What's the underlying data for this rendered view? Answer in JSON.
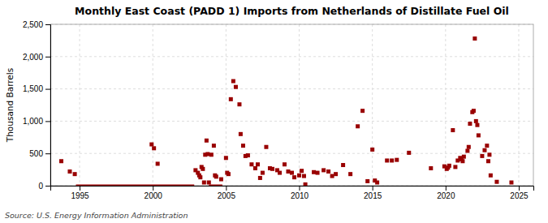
{
  "chart_data": {
    "type": "scatter",
    "title": "Monthly East Coast (PADD 1) Imports from Netherlands of Distillate Fuel Oil",
    "ylabel": "Thousand Barrels",
    "annotation": "Source: U.S. Energy Information Administration",
    "color": "#990000",
    "marker": "square",
    "grid": true,
    "xlim": [
      1993.0,
      2026.0
    ],
    "ylim": [
      0,
      2500
    ],
    "xticks": [
      1995,
      2000,
      2005,
      2010,
      2015,
      2020,
      2025
    ],
    "yticks": [
      0,
      500,
      {
        "value": 1000,
        "label": "1,000"
      },
      {
        "value": 1500,
        "label": "1,500"
      },
      {
        "value": 2000,
        "label": "2,000"
      },
      {
        "value": 2500,
        "label": "2,500"
      }
    ],
    "x": [
      1993.75,
      1994.33,
      1994.67,
      1999.92,
      2000.08,
      2000.33,
      2002.92,
      2003.08,
      2003.17,
      2003.25,
      2003.33,
      2003.42,
      2003.5,
      2003.58,
      2003.67,
      2003.75,
      2003.83,
      2004.0,
      2004.17,
      2004.25,
      2004.33,
      2004.67,
      2005.0,
      2005.08,
      2005.17,
      2005.33,
      2005.5,
      2005.67,
      2005.92,
      2006.0,
      2006.17,
      2006.33,
      2006.5,
      2006.75,
      2007.0,
      2007.17,
      2007.33,
      2007.5,
      2007.75,
      2008.0,
      2008.17,
      2008.5,
      2008.67,
      2009.0,
      2009.25,
      2009.5,
      2009.67,
      2010.0,
      2010.17,
      2010.33,
      2010.42,
      2011.0,
      2011.25,
      2011.67,
      2012.0,
      2012.25,
      2012.5,
      2013.0,
      2013.5,
      2014.0,
      2014.33,
      2014.67,
      2015.0,
      2015.17,
      2015.33,
      2016.0,
      2016.33,
      2016.67,
      2017.5,
      2019.0,
      2019.92,
      2020.08,
      2020.17,
      2020.25,
      2020.5,
      2020.67,
      2020.83,
      2021.0,
      2021.08,
      2021.17,
      2021.25,
      2021.5,
      2021.58,
      2021.67,
      2021.83,
      2021.92,
      2022.0,
      2022.08,
      2022.17,
      2022.25,
      2022.5,
      2022.67,
      2022.83,
      2022.92,
      2023.0,
      2023.08,
      2023.5,
      2024.5
    ],
    "values": [
      380,
      220,
      180,
      640,
      580,
      340,
      240,
      200,
      160,
      130,
      290,
      260,
      50,
      480,
      700,
      490,
      50,
      480,
      620,
      160,
      140,
      100,
      430,
      200,
      180,
      1340,
      1620,
      1530,
      1260,
      800,
      620,
      460,
      470,
      330,
      270,
      330,
      120,
      200,
      600,
      270,
      260,
      240,
      200,
      330,
      220,
      200,
      130,
      160,
      230,
      150,
      20,
      210,
      200,
      240,
      220,
      150,
      180,
      320,
      180,
      920,
      1160,
      70,
      560,
      80,
      50,
      390,
      390,
      400,
      510,
      270,
      300,
      260,
      280,
      310,
      860,
      290,
      390,
      430,
      410,
      380,
      450,
      540,
      600,
      960,
      1140,
      1160,
      2280,
      1000,
      940,
      780,
      460,
      550,
      620,
      380,
      480,
      160,
      60,
      50
    ],
    "segments": [
      {
        "x": [
          1994.75,
          2002.83
        ],
        "values": [
          0,
          0
        ]
      },
      {
        "x": [
          2003.83,
          2004.75
        ],
        "values": [
          0,
          0
        ]
      }
    ]
  }
}
